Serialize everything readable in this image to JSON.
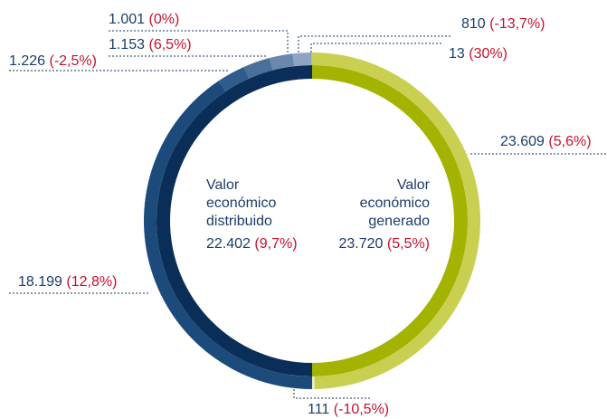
{
  "chart_data": {
    "type": "donut",
    "groups": [
      {
        "label": [
          "Valor",
          "económico",
          "generado"
        ],
        "total": 23720,
        "total_label": "23.720",
        "total_change": "(5,5%)",
        "inner_color": "#a3b300",
        "values": [
          23609,
          111
        ],
        "value_labels": [
          "23.609",
          "111"
        ],
        "changes": [
          "(5,6%)",
          "(-10,5%)"
        ],
        "colors": [
          "#c9d051",
          "#e8ecc0"
        ]
      },
      {
        "label": [
          "Valor",
          "económico",
          "distribuido"
        ],
        "total": 22402,
        "total_label": "22.402",
        "total_change": "(9,7%)",
        "inner_color": "#0b2e59",
        "values": [
          18199,
          1226,
          1153,
          1001,
          810,
          13
        ],
        "value_labels": [
          "18.199",
          "1.226",
          "1.153",
          "1.001",
          "810",
          "13"
        ],
        "changes": [
          "(12,8%)",
          "(-2,5%)",
          "(6,5%)",
          "(0%)",
          "(-13,7%)",
          "(30%)"
        ],
        "colors": [
          "#1b4a7b",
          "#2f5c8c",
          "#4a6f99",
          "#6a88ad",
          "#8ea4c2",
          "#c0cddd"
        ]
      }
    ]
  }
}
